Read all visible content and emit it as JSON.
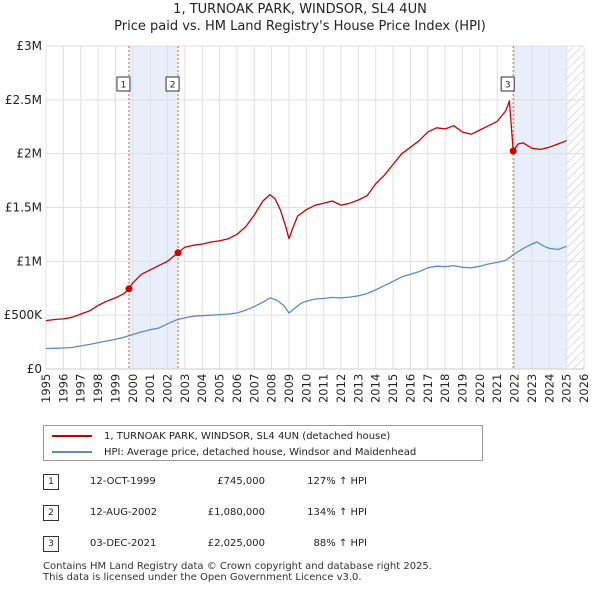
{
  "title": "1, TURNOAK PARK, WINDSOR, SL4 4UN",
  "subtitle": "Price paid vs. HM Land Registry's House Price Index (HPI)",
  "colors": {
    "property": "#cc0000",
    "hpi": "#5b8ccc",
    "shade": "#e8eefa",
    "grid": "#e0e0e0",
    "marker_line": "#d06060"
  },
  "legend": {
    "property_label": "1, TURNOAK PARK, WINDSOR, SL4 4UN (detached house)",
    "hpi_label": "HPI: Average price, detached house, Windsor and Maidenhead"
  },
  "sales": [
    {
      "num": "1",
      "date": "12-OCT-1999",
      "price": "£745,000",
      "hpi": "127% ↑ HPI"
    },
    {
      "num": "2",
      "date": "12-AUG-2002",
      "price": "£1,080,000",
      "hpi": "134% ↑ HPI"
    },
    {
      "num": "3",
      "date": "03-DEC-2021",
      "price": "£2,025,000",
      "hpi": "88% ↑ HPI"
    }
  ],
  "footer": {
    "line1": "Contains HM Land Registry data © Crown copyright and database right 2025.",
    "line2": "This data is licensed under the Open Government Licence v3.0."
  },
  "chart_data": {
    "type": "line",
    "title": "1, TURNOAK PARK, WINDSOR, SL4 4UN",
    "subtitle": "Price paid vs. HM Land Registry's House Price Index (HPI)",
    "xlim": [
      1995,
      2026
    ],
    "ylim": [
      0,
      3000000
    ],
    "x_ticks": [
      "1995",
      "1996",
      "1997",
      "1998",
      "1999",
      "2000",
      "2001",
      "2002",
      "2003",
      "2004",
      "2005",
      "2006",
      "2007",
      "2008",
      "2009",
      "2010",
      "2011",
      "2012",
      "2013",
      "2014",
      "2015",
      "2016",
      "2017",
      "2018",
      "2019",
      "2020",
      "2021",
      "2022",
      "2023",
      "2024",
      "2025",
      "2026"
    ],
    "y_ticks": [
      {
        "value": 0,
        "label": "£0"
      },
      {
        "value": 500000,
        "label": "£500K"
      },
      {
        "value": 1000000,
        "label": "£1M"
      },
      {
        "value": 1500000,
        "label": "£1.5M"
      },
      {
        "value": 2000000,
        "label": "£2M"
      },
      {
        "value": 2500000,
        "label": "£2.5M"
      },
      {
        "value": 3000000,
        "label": "£3M"
      }
    ],
    "grid": true,
    "shaded_periods": [
      [
        1999.78,
        2002.61
      ],
      [
        2021.92,
        2025.0
      ]
    ],
    "hatched_after": 2025.0,
    "sale_markers": [
      {
        "label": "1",
        "x": 1999.78,
        "y": 745000
      },
      {
        "label": "2",
        "x": 2002.61,
        "y": 1080000
      },
      {
        "label": "3",
        "x": 2021.92,
        "y": 2025000
      }
    ],
    "series": [
      {
        "name": "1, TURNOAK PARK, WINDSOR, SL4 4UN (detached house)",
        "x": [
          1995.0,
          1995.5,
          1996.0,
          1996.5,
          1997.0,
          1997.5,
          1998.0,
          1998.5,
          1999.0,
          1999.5,
          1999.78,
          2000.0,
          2000.5,
          2001.0,
          2001.5,
          2002.0,
          2002.61,
          2003.0,
          2003.5,
          2004.0,
          2004.5,
          2005.0,
          2005.5,
          2006.0,
          2006.5,
          2007.0,
          2007.5,
          2007.9,
          2008.2,
          2008.5,
          2008.8,
          2009.0,
          2009.2,
          2009.5,
          2010.0,
          2010.5,
          2011.0,
          2011.5,
          2012.0,
          2012.5,
          2013.0,
          2013.5,
          2014.0,
          2014.5,
          2015.0,
          2015.5,
          2016.0,
          2016.5,
          2017.0,
          2017.5,
          2018.0,
          2018.5,
          2019.0,
          2019.5,
          2020.0,
          2020.5,
          2021.0,
          2021.5,
          2021.7,
          2021.92,
          2022.2,
          2022.5,
          2023.0,
          2023.5,
          2024.0,
          2024.5,
          2025.0
        ],
        "y": [
          450000,
          460000,
          465000,
          480000,
          510000,
          540000,
          590000,
          630000,
          660000,
          700000,
          745000,
          800000,
          880000,
          920000,
          960000,
          1000000,
          1080000,
          1130000,
          1150000,
          1160000,
          1180000,
          1190000,
          1210000,
          1250000,
          1320000,
          1430000,
          1560000,
          1620000,
          1580000,
          1480000,
          1330000,
          1210000,
          1300000,
          1420000,
          1480000,
          1520000,
          1540000,
          1560000,
          1520000,
          1540000,
          1570000,
          1610000,
          1720000,
          1800000,
          1900000,
          2000000,
          2060000,
          2120000,
          2200000,
          2240000,
          2230000,
          2260000,
          2200000,
          2180000,
          2220000,
          2260000,
          2300000,
          2400000,
          2490000,
          2025000,
          2090000,
          2100000,
          2050000,
          2040000,
          2060000,
          2090000,
          2120000
        ]
      },
      {
        "name": "HPI: Average price, detached house, Windsor and Maidenhead",
        "x": [
          1995.0,
          1995.5,
          1996.0,
          1996.5,
          1997.0,
          1997.5,
          1998.0,
          1998.5,
          1999.0,
          1999.5,
          2000.0,
          2000.5,
          2001.0,
          2001.5,
          2002.0,
          2002.5,
          2003.0,
          2003.5,
          2004.0,
          2004.5,
          2005.0,
          2005.5,
          2006.0,
          2006.5,
          2007.0,
          2007.5,
          2007.9,
          2008.3,
          2008.7,
          2009.0,
          2009.3,
          2009.7,
          2010.0,
          2010.5,
          2011.0,
          2011.5,
          2012.0,
          2012.5,
          2013.0,
          2013.5,
          2014.0,
          2014.5,
          2015.0,
          2015.5,
          2016.0,
          2016.5,
          2017.0,
          2017.5,
          2018.0,
          2018.5,
          2019.0,
          2019.5,
          2020.0,
          2020.5,
          2021.0,
          2021.5,
          2022.0,
          2022.5,
          2023.0,
          2023.3,
          2023.7,
          2024.0,
          2024.5,
          2025.0
        ],
        "y": [
          190000,
          192000,
          195000,
          200000,
          215000,
          228000,
          245000,
          260000,
          275000,
          295000,
          320000,
          345000,
          365000,
          380000,
          420000,
          455000,
          475000,
          490000,
          495000,
          500000,
          505000,
          510000,
          520000,
          545000,
          580000,
          620000,
          660000,
          640000,
          590000,
          520000,
          560000,
          610000,
          630000,
          650000,
          655000,
          665000,
          660000,
          668000,
          680000,
          700000,
          735000,
          775000,
          815000,
          855000,
          880000,
          905000,
          940000,
          955000,
          950000,
          960000,
          945000,
          940000,
          955000,
          975000,
          990000,
          1010000,
          1070000,
          1120000,
          1160000,
          1180000,
          1140000,
          1120000,
          1110000,
          1140000
        ]
      }
    ]
  }
}
